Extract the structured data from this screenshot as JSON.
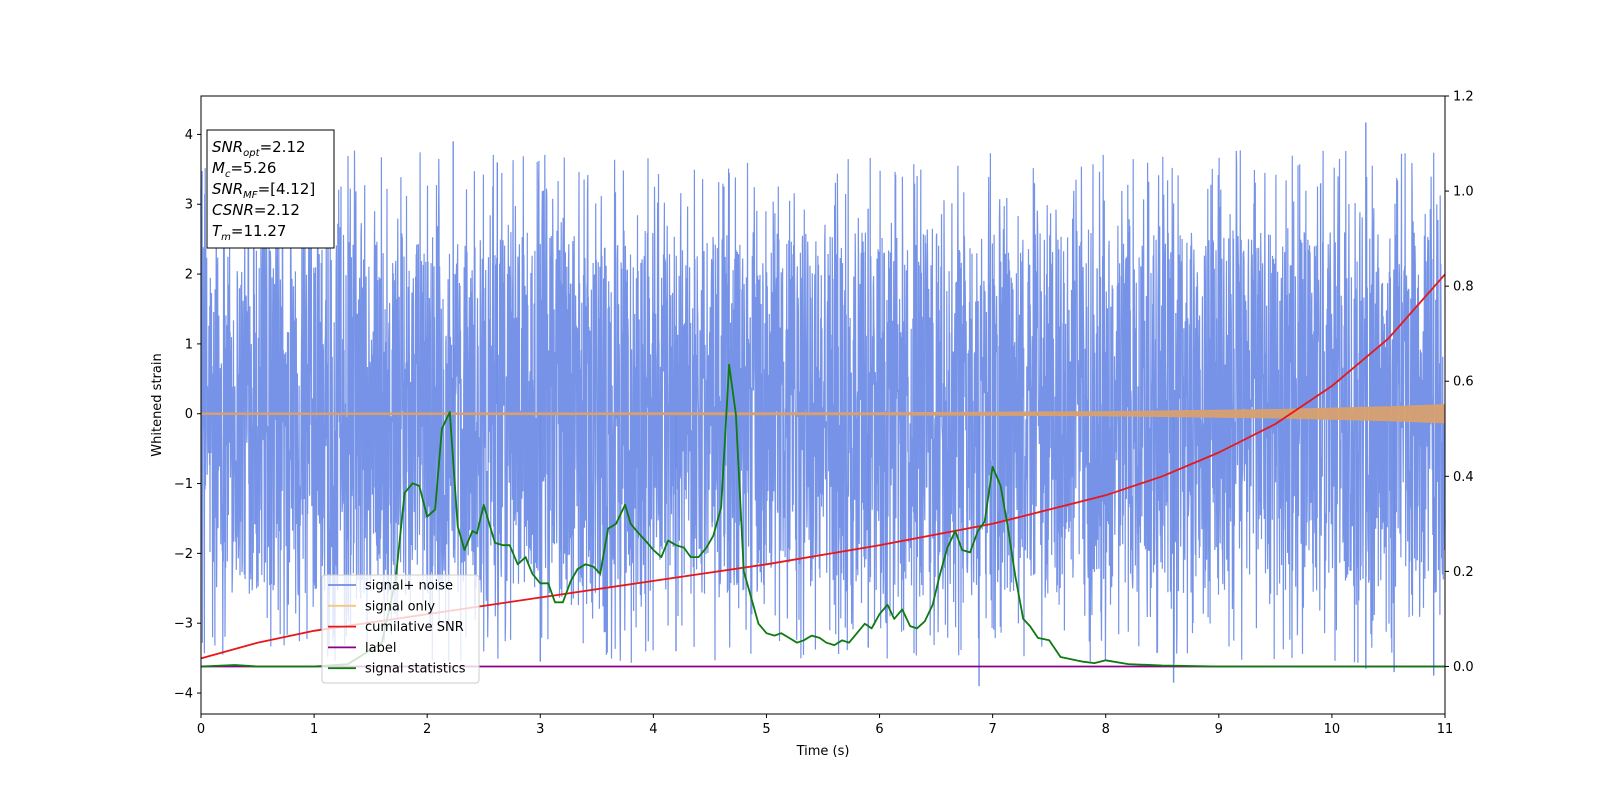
{
  "chart_data": {
    "type": "line",
    "xlabel": "Time (s)",
    "ylabel": "Whitened strain",
    "xlim": [
      0,
      11
    ],
    "ylim_left": [
      -4.3,
      4.55
    ],
    "ylim_right": [
      -0.1,
      1.2
    ],
    "x_ticks": [
      "0",
      "1",
      "2",
      "3",
      "4",
      "5",
      "6",
      "7",
      "8",
      "9",
      "10",
      "11"
    ],
    "y_ticks_left": [
      "4",
      "3",
      "2",
      "1",
      "0",
      "−1",
      "−2",
      "−3",
      "−4"
    ],
    "y_ticks_right": [
      "1.2",
      "1.0",
      "0.8",
      "0.6",
      "0.4",
      "0.2",
      "0.0"
    ],
    "y_tick_values_left": [
      4,
      3,
      2,
      1,
      0,
      -1,
      -2,
      -3,
      -4
    ],
    "y_tick_values_right": [
      1.2,
      1.0,
      0.8,
      0.6,
      0.4,
      0.2,
      0.0
    ],
    "grid": false,
    "legend_position": "lower-left",
    "info_box": [
      {
        "sym": "SNR",
        "sub": "opt",
        "val": "=2.12"
      },
      {
        "sym": "M",
        "sub": "c",
        "val": "=5.26"
      },
      {
        "sym": "SNR",
        "sub": "MF",
        "val": "=[4.12]"
      },
      {
        "sym": "CSNR",
        "sub": "",
        "val": "=2.12"
      },
      {
        "sym": "T",
        "sub": "m",
        "val": "=11.27"
      }
    ],
    "series": [
      {
        "name": "signal+ noise",
        "axis": "left",
        "color": "#6f8de6",
        "noise_band": {
          "low": -2.6,
          "high": 2.6,
          "peak_max": 4.17,
          "trough_min": -3.9
        }
      },
      {
        "name": "signal only",
        "axis": "left",
        "color": "#f5c77e",
        "envelope": {
          "x": [
            0,
            6,
            8,
            9.5,
            10.5,
            11
          ],
          "amp": [
            0.01,
            0.015,
            0.03,
            0.06,
            0.1,
            0.13
          ]
        }
      },
      {
        "name": "cumilative SNR",
        "axis": "right",
        "color": "#e8171a",
        "x": [
          0,
          0.5,
          1,
          2,
          3,
          4,
          5,
          6,
          7,
          8,
          8.5,
          9,
          9.5,
          10,
          10.5,
          11
        ],
        "y": [
          0.017,
          0.05,
          0.075,
          0.11,
          0.145,
          0.18,
          0.215,
          0.255,
          0.3,
          0.36,
          0.4,
          0.45,
          0.51,
          0.59,
          0.69,
          0.825
        ]
      },
      {
        "name": "label",
        "axis": "right",
        "color": "#8b008b",
        "x": [
          0,
          11
        ],
        "y": [
          0.0,
          0.0
        ]
      },
      {
        "name": "signal statistics",
        "axis": "right",
        "color": "#0e7a10",
        "x": [
          0,
          0.3,
          0.5,
          1,
          1.3,
          1.6,
          1.72,
          1.8,
          1.87,
          1.93,
          2.0,
          2.07,
          2.13,
          2.2,
          2.27,
          2.33,
          2.4,
          2.44,
          2.5,
          2.6,
          2.67,
          2.73,
          2.8,
          2.87,
          2.93,
          3.0,
          3.07,
          3.13,
          3.2,
          3.27,
          3.33,
          3.4,
          3.47,
          3.53,
          3.6,
          3.67,
          3.75,
          3.8,
          3.87,
          3.93,
          4.0,
          4.07,
          4.13,
          4.2,
          4.27,
          4.33,
          4.4,
          4.47,
          4.53,
          4.6,
          4.67,
          4.73,
          4.8,
          4.87,
          4.93,
          5.0,
          5.07,
          5.13,
          5.2,
          5.27,
          5.33,
          5.4,
          5.47,
          5.53,
          5.6,
          5.67,
          5.73,
          5.8,
          5.87,
          5.93,
          6.0,
          6.07,
          6.13,
          6.2,
          6.27,
          6.33,
          6.4,
          6.47,
          6.53,
          6.6,
          6.67,
          6.73,
          6.8,
          6.87,
          6.93,
          7.0,
          7.07,
          7.13,
          7.2,
          7.27,
          7.33,
          7.4,
          7.5,
          7.6,
          7.8,
          7.9,
          8.0,
          8.2,
          8.5,
          9.0,
          9.5,
          10,
          11
        ],
        "y": [
          0.0,
          0.003,
          0.0,
          0.0,
          0.005,
          0.05,
          0.18,
          0.365,
          0.385,
          0.38,
          0.315,
          0.33,
          0.5,
          0.535,
          0.295,
          0.245,
          0.285,
          0.28,
          0.34,
          0.26,
          0.255,
          0.255,
          0.215,
          0.23,
          0.195,
          0.175,
          0.175,
          0.135,
          0.135,
          0.18,
          0.205,
          0.215,
          0.21,
          0.195,
          0.29,
          0.3,
          0.34,
          0.3,
          0.28,
          0.265,
          0.245,
          0.23,
          0.265,
          0.255,
          0.25,
          0.23,
          0.23,
          0.25,
          0.275,
          0.335,
          0.635,
          0.53,
          0.2,
          0.14,
          0.09,
          0.07,
          0.065,
          0.07,
          0.06,
          0.05,
          0.055,
          0.065,
          0.06,
          0.05,
          0.045,
          0.055,
          0.05,
          0.07,
          0.09,
          0.08,
          0.11,
          0.13,
          0.1,
          0.12,
          0.085,
          0.08,
          0.095,
          0.13,
          0.19,
          0.25,
          0.285,
          0.245,
          0.24,
          0.285,
          0.305,
          0.42,
          0.38,
          0.3,
          0.19,
          0.1,
          0.085,
          0.06,
          0.055,
          0.02,
          0.01,
          0.007,
          0.013,
          0.005,
          0.002,
          0.0,
          0.0,
          0.0,
          0.0
        ]
      }
    ]
  }
}
